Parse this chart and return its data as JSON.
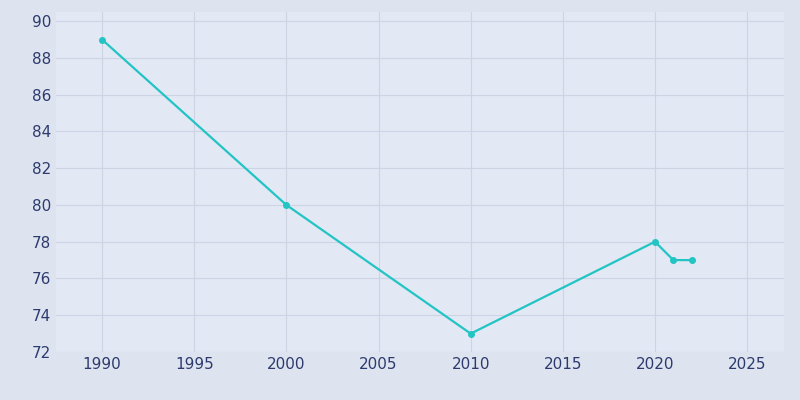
{
  "years": [
    1990,
    2000,
    2010,
    2020,
    2021,
    2022
  ],
  "population": [
    89,
    80,
    73,
    78,
    77,
    77
  ],
  "line_color": "#22c4c4",
  "marker_color": "#22c4c4",
  "background_color": "#dde4ef",
  "plot_bg_color": "#e2e8f4",
  "grid_color": "#cdd5e4",
  "xlim": [
    1987.5,
    2027
  ],
  "ylim": [
    72,
    90.5
  ],
  "xticks": [
    1990,
    1995,
    2000,
    2005,
    2010,
    2015,
    2020,
    2025
  ],
  "yticks": [
    72,
    74,
    76,
    78,
    80,
    82,
    84,
    86,
    88,
    90
  ],
  "tick_label_color": "#2d3a6e",
  "tick_fontsize": 11,
  "linewidth": 1.6,
  "markersize": 4
}
